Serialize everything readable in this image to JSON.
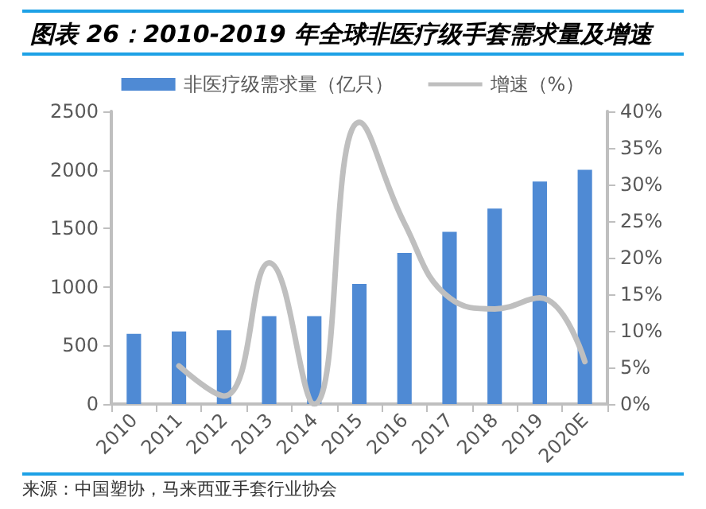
{
  "chart_data": {
    "type": "bar",
    "title": "图表 26：2010-2019 年全球非医疗级手套需求量及增速",
    "categories": [
      "2010",
      "2011",
      "2012",
      "2013",
      "2014",
      "2015",
      "2016",
      "2017",
      "2018",
      "2019",
      "2020E"
    ],
    "series": [
      {
        "name": "非医疗级需求量（亿只）",
        "color": "#4f8ad4",
        "values": [
          600,
          620,
          630,
          750,
          750,
          1025,
          1290,
          1470,
          1670,
          1900,
          2000
        ]
      },
      {
        "name": "增速（%）",
        "type": "line",
        "axis": "y2",
        "color": "#bfbfbf",
        "values": [
          null,
          5.2,
          1.1,
          19.3,
          0,
          38.5,
          24.7,
          14.5,
          13,
          14.5,
          5.8
        ]
      }
    ],
    "ylim": [
      0,
      2500
    ],
    "yticks": [
      0,
      500,
      1000,
      1500,
      2000,
      2500
    ],
    "y2lim": [
      0,
      40
    ],
    "y2ticks": [
      {
        "value": 0,
        "label": "0%"
      },
      {
        "value": 5,
        "label": "5%"
      },
      {
        "value": 10,
        "label": "10%"
      },
      {
        "value": 15,
        "label": "15%"
      },
      {
        "value": 20,
        "label": "20%"
      },
      {
        "value": 25,
        "label": "25%"
      },
      {
        "value": 30,
        "label": "30%"
      },
      {
        "value": 35,
        "label": "35%"
      },
      {
        "value": 40,
        "label": "40%"
      }
    ],
    "legend": "top",
    "grid": false,
    "marker": "none",
    "annotations": [
      "来源：中国塑协，马来西亚手套行业协会"
    ]
  }
}
